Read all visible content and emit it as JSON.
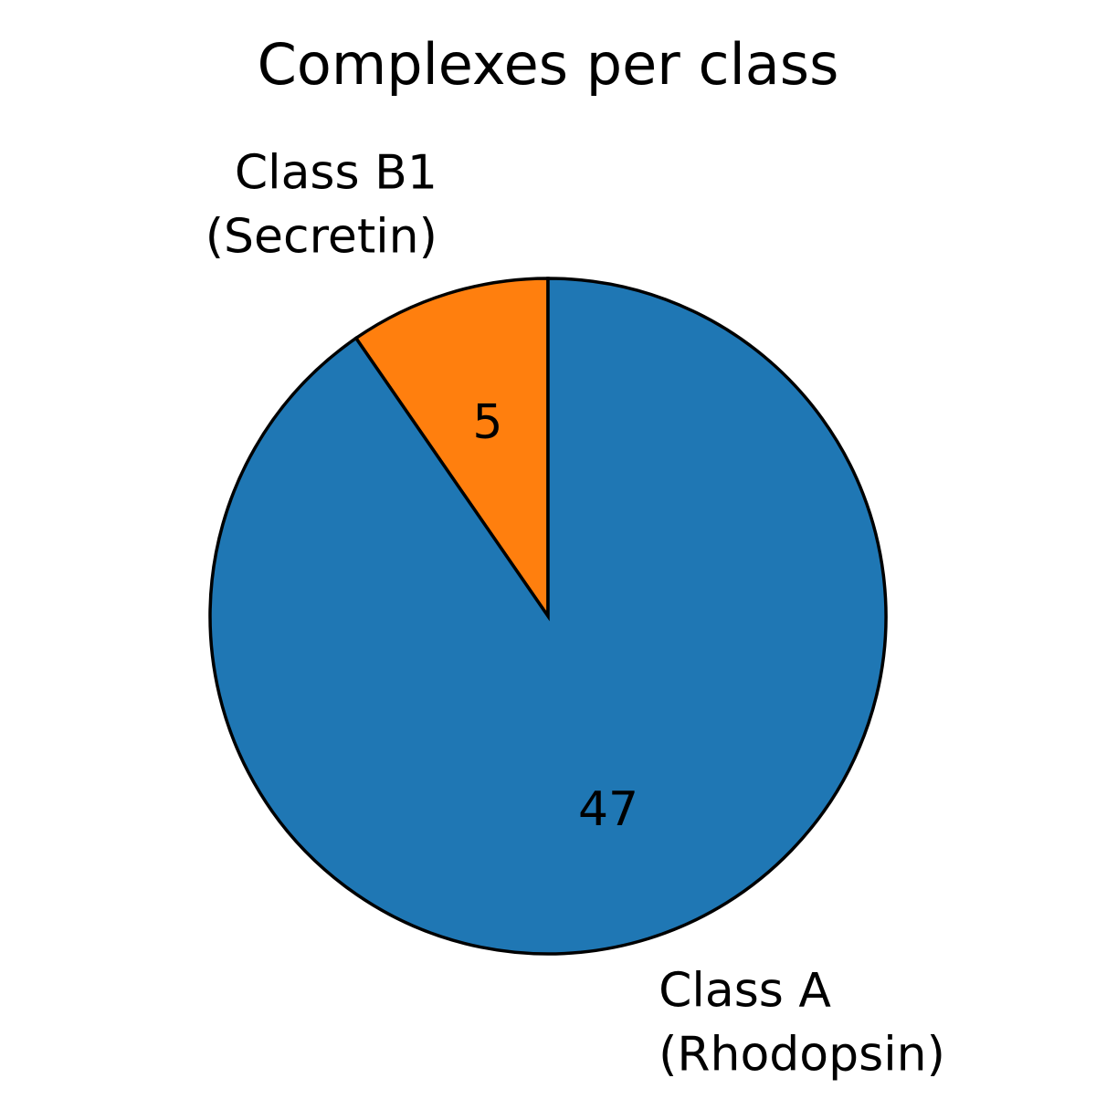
{
  "chart_data": {
    "type": "pie",
    "title": "Complexes per class",
    "slices": [
      {
        "label_lines": [
          "Class B1",
          "(Secretin)"
        ],
        "value": 5,
        "value_label": "5",
        "color": "#ff7f0e"
      },
      {
        "label_lines": [
          "Class A",
          "(Rhodopsin)"
        ],
        "value": 47,
        "value_label": "47",
        "color": "#1f77b4"
      }
    ],
    "start_angle": "top (12 o'clock)",
    "direction": "counterclockwise",
    "edge_color": "#000000"
  }
}
